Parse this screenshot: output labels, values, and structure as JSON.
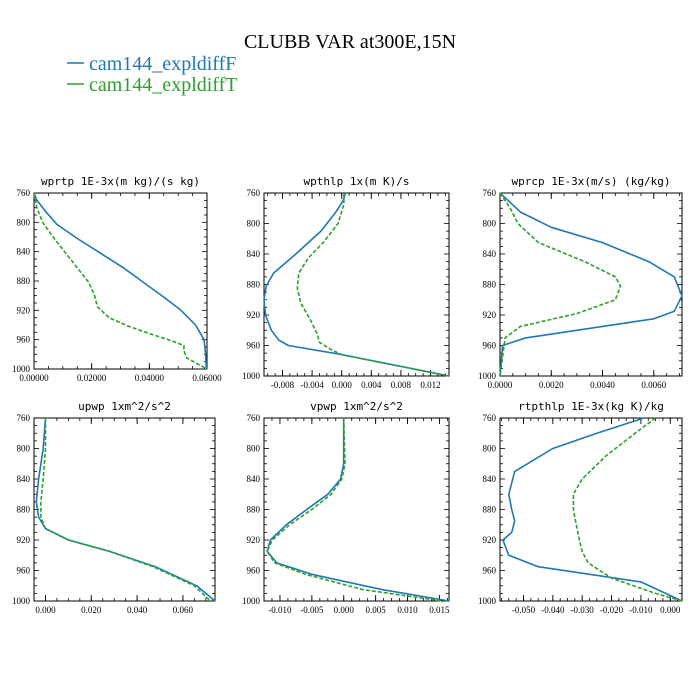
{
  "figure": {
    "title": "CLUBB VAR at300E,15N",
    "legend": [
      {
        "label": "cam144_expldiffF",
        "color": "#1f77b4",
        "dash": "solid"
      },
      {
        "label": "cam144_expldiffT",
        "color": "#2ca02c",
        "dash": "dashed"
      }
    ]
  },
  "chart_data": [
    {
      "type": "line",
      "title": "wprtp  1E-3x(m kg)/(s kg)",
      "y_axis": "pressure",
      "y_inverted": true,
      "ylim": [
        760,
        1000
      ],
      "yticks": [
        760,
        800,
        840,
        880,
        920,
        960,
        1000
      ],
      "xlim": [
        0,
        0.06
      ],
      "xticks": [
        0,
        0.02,
        0.04,
        0.06
      ],
      "xtick_labels": [
        "0.00000",
        "0.02000",
        "0.04000",
        "0.06000"
      ],
      "series": [
        {
          "name": "cam144_expldiffF",
          "x": [
            0.0,
            0.001,
            0.004,
            0.008,
            0.015,
            0.023,
            0.031,
            0.038,
            0.045,
            0.051,
            0.056,
            0.059,
            0.0595,
            0.0598
          ],
          "y": [
            760,
            770,
            785,
            803,
            822,
            842,
            862,
            882,
            902,
            920,
            940,
            960,
            980,
            1000
          ]
        },
        {
          "name": "cam144_expldiffT",
          "x": [
            0.0,
            0.001,
            0.003,
            0.007,
            0.011,
            0.015,
            0.019,
            0.021,
            0.022,
            0.026,
            0.033,
            0.041,
            0.048,
            0.052,
            0.052,
            0.053,
            0.06
          ],
          "y": [
            760,
            780,
            800,
            822,
            842,
            862,
            882,
            900,
            915,
            930,
            942,
            953,
            962,
            968,
            975,
            985,
            1000
          ]
        }
      ]
    },
    {
      "type": "line",
      "title": "wpthlp  1x(m K)/s",
      "y_axis": "pressure",
      "y_inverted": true,
      "ylim": [
        760,
        1000
      ],
      "yticks": [
        760,
        800,
        840,
        880,
        920,
        960,
        1000
      ],
      "xlim": [
        -0.0105,
        0.0145
      ],
      "xticks": [
        -0.008,
        -0.004,
        0.0,
        0.004,
        0.008,
        0.012
      ],
      "xtick_labels": [
        "-0.008",
        "-0.004",
        "0.000",
        "0.004",
        "0.008",
        "0.012"
      ],
      "series": [
        {
          "name": "cam144_expldiffF",
          "x": [
            0.0005,
            0.0002,
            -0.0008,
            -0.0028,
            -0.0062,
            -0.0092,
            -0.0102,
            -0.0105,
            -0.0103,
            -0.0095,
            -0.0085,
            -0.0072,
            0.0,
            0.0145
          ],
          "y": [
            760,
            770,
            785,
            810,
            840,
            865,
            882,
            900,
            920,
            940,
            953,
            960,
            972,
            1000
          ]
        },
        {
          "name": "cam144_expldiffT",
          "x": [
            0.0003,
            0.0003,
            -0.0005,
            -0.0025,
            -0.0045,
            -0.0058,
            -0.006,
            -0.0055,
            -0.0043,
            -0.0033,
            -0.003,
            -0.0015,
            0.0,
            0.0145
          ],
          "y": [
            760,
            775,
            800,
            825,
            845,
            865,
            885,
            905,
            925,
            945,
            956,
            965,
            972,
            1000
          ]
        }
      ]
    },
    {
      "type": "line",
      "title": "wprcp  1E-3x(m/s) (kg/kg)",
      "y_axis": "pressure",
      "y_inverted": true,
      "ylim": [
        760,
        1000
      ],
      "yticks": [
        760,
        800,
        840,
        880,
        920,
        960,
        1000
      ],
      "xlim": [
        0,
        0.0071
      ],
      "xticks": [
        0,
        0.002,
        0.004,
        0.006
      ],
      "xtick_labels": [
        "0.0000",
        "0.0020",
        "0.0040",
        "0.0060"
      ],
      "series": [
        {
          "name": "cam144_expldiffF",
          "x": [
            0.0,
            0.0008,
            0.002,
            0.004,
            0.0058,
            0.0068,
            0.0071,
            0.0068,
            0.006,
            0.001,
            0.0001,
            0.0
          ],
          "y": [
            760,
            785,
            805,
            825,
            850,
            870,
            895,
            915,
            925,
            950,
            960,
            1000
          ]
        },
        {
          "name": "cam144_expldiffT",
          "x": [
            0.0,
            0.0004,
            0.0007,
            0.0015,
            0.0033,
            0.0045,
            0.0047,
            0.0045,
            0.003,
            0.0008,
            0.0002,
            0.0
          ],
          "y": [
            760,
            780,
            800,
            825,
            850,
            870,
            882,
            900,
            918,
            935,
            950,
            1000
          ]
        }
      ]
    },
    {
      "type": "line",
      "title": "upwp  1xm^2/s^2",
      "y_axis": "pressure",
      "y_inverted": true,
      "ylim": [
        760,
        1000
      ],
      "yticks": [
        760,
        800,
        840,
        880,
        920,
        960,
        1000
      ],
      "xlim": [
        -0.005,
        0.074
      ],
      "xticks": [
        0,
        0.02,
        0.04,
        0.06
      ],
      "xtick_labels": [
        "0.000",
        "0.020",
        "0.040",
        "0.060"
      ],
      "series": [
        {
          "name": "cam144_expldiffF",
          "x": [
            0.0,
            -0.001,
            -0.003,
            -0.004,
            -0.003,
            0.0,
            0.01,
            0.028,
            0.048,
            0.066,
            0.074
          ],
          "y": [
            760,
            800,
            840,
            870,
            890,
            905,
            920,
            935,
            955,
            980,
            1000
          ]
        },
        {
          "name": "cam144_expldiffT",
          "x": [
            0.0,
            0.0,
            -0.001,
            -0.002,
            -0.002,
            0.0,
            0.01,
            0.028,
            0.047,
            0.065,
            0.072
          ],
          "y": [
            760,
            800,
            840,
            870,
            890,
            905,
            920,
            935,
            955,
            980,
            1000
          ]
        }
      ]
    },
    {
      "type": "line",
      "title": "vpwp  1xm^2/s^2",
      "y_axis": "pressure",
      "y_inverted": true,
      "ylim": [
        760,
        1000
      ],
      "yticks": [
        760,
        800,
        840,
        880,
        920,
        960,
        1000
      ],
      "xlim": [
        -0.0125,
        0.0165
      ],
      "xticks": [
        -0.01,
        -0.005,
        0.0,
        0.005,
        0.01,
        0.015
      ],
      "xtick_labels": [
        "-0.010",
        "-0.005",
        "0.000",
        "0.005",
        "0.010",
        "0.015"
      ],
      "series": [
        {
          "name": "cam144_expldiffF",
          "x": [
            0.0,
            0.0,
            -0.0005,
            -0.0025,
            -0.0058,
            -0.009,
            -0.0115,
            -0.012,
            -0.0105,
            -0.005,
            0.006,
            0.0165
          ],
          "y": [
            760,
            820,
            840,
            860,
            880,
            900,
            920,
            935,
            950,
            965,
            985,
            1000
          ]
        },
        {
          "name": "cam144_expldiffT",
          "x": [
            0.0,
            0.0002,
            -0.0003,
            -0.002,
            -0.005,
            -0.0085,
            -0.0112,
            -0.012,
            -0.0108,
            -0.006,
            0.003,
            0.0155
          ],
          "y": [
            760,
            820,
            840,
            860,
            880,
            900,
            920,
            935,
            950,
            965,
            985,
            1000
          ]
        }
      ]
    },
    {
      "type": "line",
      "title": "rtpthlp  1E-3x(kg K)/kg",
      "y_axis": "pressure",
      "y_inverted": true,
      "ylim": [
        760,
        1000
      ],
      "yticks": [
        760,
        800,
        840,
        880,
        920,
        960,
        1000
      ],
      "xlim": [
        -0.058,
        0.004
      ],
      "xticks": [
        -0.05,
        -0.04,
        -0.03,
        -0.02,
        -0.01,
        0.0
      ],
      "xtick_labels": [
        "-0.050",
        "-0.040",
        "-0.030",
        "-0.020",
        "-0.010",
        "0.000"
      ],
      "series": [
        {
          "name": "cam144_expldiffF",
          "x": [
            -0.009,
            -0.025,
            -0.04,
            -0.053,
            -0.055,
            -0.054,
            -0.053,
            -0.054,
            -0.057,
            -0.055,
            -0.045,
            -0.01,
            0.004
          ],
          "y": [
            760,
            780,
            800,
            830,
            860,
            880,
            895,
            910,
            920,
            940,
            955,
            975,
            1000
          ]
        },
        {
          "name": "cam144_expldiffT",
          "x": [
            -0.005,
            -0.012,
            -0.022,
            -0.03,
            -0.033,
            -0.033,
            -0.032,
            -0.031,
            -0.03,
            -0.028,
            -0.02,
            -0.005,
            0.004
          ],
          "y": [
            760,
            780,
            810,
            840,
            860,
            880,
            900,
            920,
            935,
            950,
            970,
            990,
            1000
          ]
        }
      ]
    }
  ]
}
